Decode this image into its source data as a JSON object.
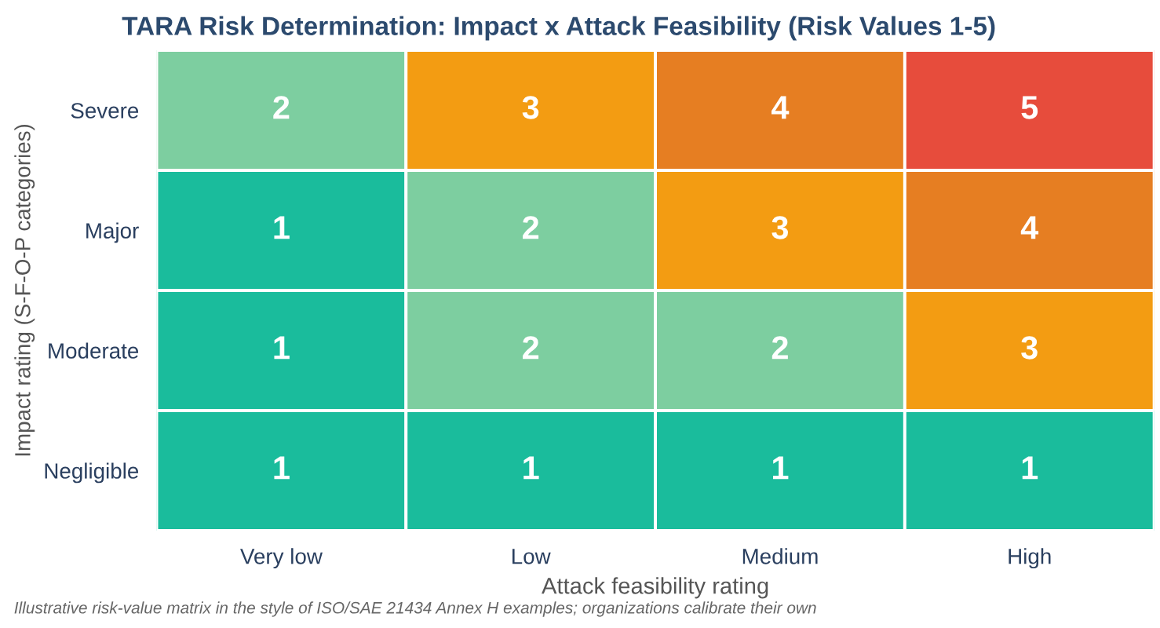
{
  "chart_data": {
    "type": "heatmap",
    "title": "TARA Risk Determination: Impact x Attack Feasibility (Risk Values 1-5)",
    "xlabel": "Attack feasibility rating",
    "ylabel": "Impact rating (S-F-O-P categories)",
    "categories": [
      "Very low",
      "Low",
      "Medium",
      "High"
    ],
    "y_categories": [
      "Severe",
      "Major",
      "Moderate",
      "Negligible"
    ],
    "cells": [
      [
        2,
        3,
        4,
        5
      ],
      [
        1,
        2,
        3,
        4
      ],
      [
        1,
        2,
        2,
        3
      ],
      [
        1,
        1,
        1,
        1
      ]
    ],
    "colors": [
      "#7dcea0",
      "#f39c12",
      "#e67e22",
      "#e74c3c",
      "#1abc9c",
      "#7dcea0",
      "#f39c12",
      "#e67e22",
      "#1abc9c",
      "#7dcea0",
      "#7dcea0",
      "#f39c12",
      "#1abc9c",
      "#1abc9c",
      "#1abc9c",
      "#1abc9c"
    ],
    "data_labels": true,
    "annotations": [
      "Illustrative risk-value matrix in the style of ISO/SAE 21434 Annex H examples; organizations calibrate their own"
    ]
  }
}
